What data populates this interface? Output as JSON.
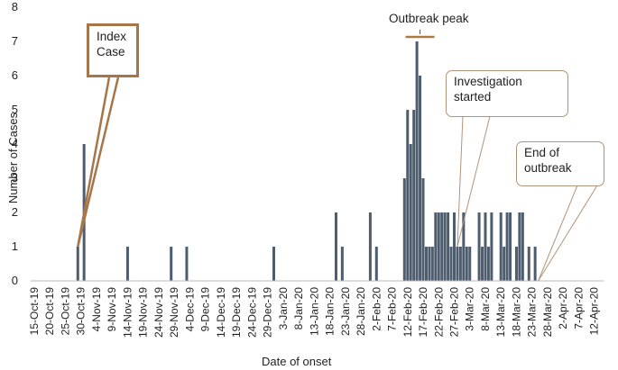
{
  "chart_data": {
    "type": "bar",
    "xlabel": "Date of onset",
    "ylabel": "Number of Cases",
    "ylim": [
      0,
      8
    ],
    "yticks": [
      "0",
      "1",
      "2",
      "3",
      "4",
      "5",
      "6",
      "7",
      "8"
    ],
    "x_start_day": "15-Oct-19",
    "day_range": [
      0,
      183
    ],
    "xtick_labels": [
      "15-Oct-19",
      "20-Oct-19",
      "25-Oct-19",
      "30-Oct-19",
      "4-Nov-19",
      "9-Nov-19",
      "14-Nov-19",
      "19-Nov-19",
      "24-Nov-19",
      "29-Nov-19",
      "4-Dec-19",
      "9-Dec-19",
      "14-Dec-19",
      "19-Dec-19",
      "24-Dec-19",
      "29-Dec-19",
      "3-Jan-20",
      "8-Jan-20",
      "13-Jan-20",
      "18-Jan-20",
      "23-Jan-20",
      "28-Jan-20",
      "2-Feb-20",
      "7-Feb-20",
      "12-Feb-20",
      "17-Feb-20",
      "22-Feb-20",
      "27-Feb-20",
      "3-Mar-20",
      "8-Mar-20",
      "13-Mar-20",
      "18-Mar-20",
      "23-Mar-20",
      "28-Mar-20",
      "2-Apr-20",
      "7-Apr-20",
      "12-Apr-20"
    ],
    "days": [
      14,
      16,
      30,
      44,
      49,
      77,
      97,
      99,
      108,
      110,
      119,
      120,
      121,
      122,
      123,
      124,
      125,
      126,
      127,
      128,
      129,
      130,
      131,
      132,
      133,
      134,
      135,
      136,
      137,
      138,
      139,
      140,
      143,
      144,
      145,
      146,
      147,
      150,
      151,
      152,
      153,
      155,
      156,
      157,
      159,
      161
    ],
    "values": [
      1,
      4,
      1,
      1,
      1,
      1,
      2,
      1,
      2,
      1,
      3,
      5,
      4,
      5,
      7,
      6,
      3,
      1,
      1,
      1,
      2,
      2,
      2,
      2,
      2,
      1,
      2,
      1,
      1,
      2,
      1,
      1,
      2,
      1,
      2,
      1,
      2,
      2,
      1,
      2,
      2,
      1,
      2,
      2,
      1,
      1
    ],
    "annotations": {
      "index_case": "Index Case",
      "outbreak_peak": "Outbreak peak",
      "investigation_started": "Investigation started",
      "end_of_outbreak": "End of outbreak"
    }
  },
  "colors": {
    "bar": "#4e5d6e",
    "axis": "#b9b9b9",
    "callout_index": "#a6764a",
    "callout_line": "#b09478",
    "peak_marker": "#b07840"
  }
}
